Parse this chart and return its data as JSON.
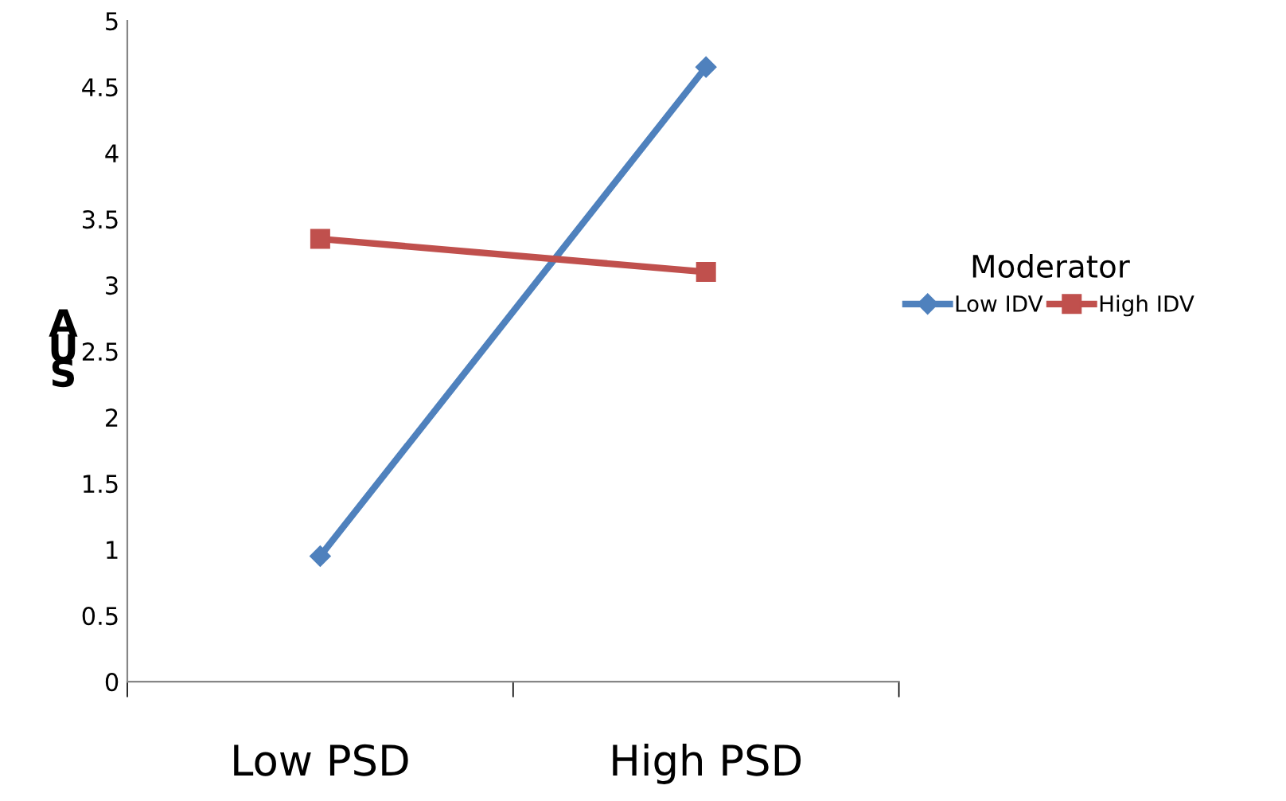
{
  "chart_data": {
    "type": "line",
    "ylabel": "AUS",
    "legend_title": "Moderator",
    "categories": [
      "Low PSD",
      "High PSD"
    ],
    "series": [
      {
        "name": "Low IDV",
        "color": "#4f81bd",
        "marker": "diamond",
        "values": [
          0.95,
          4.65
        ]
      },
      {
        "name": "High IDV",
        "color": "#c0504d",
        "marker": "square",
        "values": [
          3.35,
          3.1
        ]
      }
    ],
    "ylim": [
      0,
      5
    ],
    "yticks": [
      0,
      0.5,
      1,
      1.5,
      2,
      2.5,
      3,
      3.5,
      4,
      4.5,
      5
    ],
    "grid": false,
    "legend": "right",
    "line_style": "solid"
  }
}
